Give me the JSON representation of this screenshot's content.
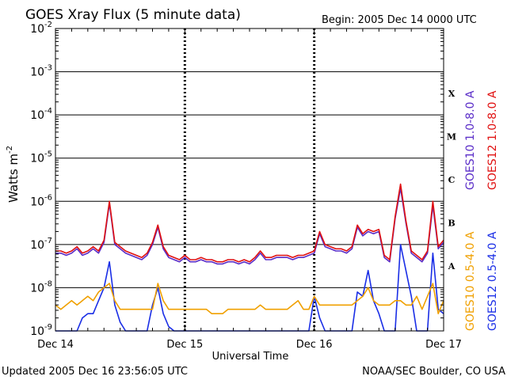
{
  "header": {
    "title": "GOES Xray Flux (5 minute data)",
    "begin": "Begin:  2005 Dec 14 0000 UTC"
  },
  "footer": {
    "updated": "Updated 2005 Dec 16 23:56:05 UTC",
    "credit": "NOAA/SEC Boulder, CO USA"
  },
  "chart_data": {
    "type": "line",
    "xlabel": "Universal Time",
    "ylabel": "Watts m",
    "ylabel_sup": "-2",
    "yscale": "log",
    "ylim": [
      1e-09,
      0.01
    ],
    "xlim": [
      0,
      72
    ],
    "y_ticks": [
      {
        "base": "10",
        "exp": "-9",
        "v": -9
      },
      {
        "base": "10",
        "exp": "-8",
        "v": -8
      },
      {
        "base": "10",
        "exp": "-7",
        "v": -7
      },
      {
        "base": "10",
        "exp": "-6",
        "v": -6
      },
      {
        "base": "10",
        "exp": "-5",
        "v": -5
      },
      {
        "base": "10",
        "exp": "-4",
        "v": -4
      },
      {
        "base": "10",
        "exp": "-3",
        "v": -3
      },
      {
        "base": "10",
        "exp": "-2",
        "v": -2
      }
    ],
    "x_ticks": [
      {
        "label": "Dec 14",
        "x": 0
      },
      {
        "label": "Dec 15",
        "x": 24
      },
      {
        "label": "Dec 16",
        "x": 48
      },
      {
        "label": "Dec 17",
        "x": 72
      }
    ],
    "flare_classes": [
      {
        "label": "X",
        "v": -3.5
      },
      {
        "label": "M",
        "v": -4.5
      },
      {
        "label": "C",
        "v": -5.5
      },
      {
        "label": "B",
        "v": -6.5
      },
      {
        "label": "A",
        "v": -7.5
      }
    ],
    "grid": true,
    "legend_position": "right",
    "series": [
      {
        "name": "GOES12 0.5-4.0 A",
        "color": "#1a2ee6",
        "x": [
          0,
          1,
          2,
          3,
          4,
          5,
          6,
          7,
          8,
          9,
          10,
          11,
          12,
          13,
          14,
          15,
          16,
          17,
          18,
          19,
          20,
          21,
          22,
          23,
          24,
          25,
          26,
          27,
          28,
          29,
          30,
          31,
          32,
          33,
          34,
          35,
          36,
          37,
          38,
          39,
          40,
          41,
          42,
          43,
          44,
          45,
          46,
          47,
          48,
          49,
          50,
          51,
          52,
          53,
          54,
          55,
          56,
          57,
          58,
          59,
          60,
          61,
          62,
          63,
          64,
          65,
          66,
          67,
          68,
          69,
          70,
          71,
          72
        ],
        "logy": [
          -9,
          -9,
          -9,
          -9,
          -9,
          -8.7,
          -8.6,
          -8.6,
          -8.3,
          -8,
          -7.4,
          -8.4,
          -8.8,
          -9,
          -9,
          -9,
          -9,
          -9,
          -8.4,
          -8,
          -8.6,
          -8.9,
          -9,
          -9,
          -9,
          -9,
          -9,
          -9,
          -9,
          -9,
          -9,
          -9,
          -9,
          -9,
          -9,
          -9,
          -9,
          -9,
          -9,
          -9,
          -9,
          -9,
          -9,
          -9,
          -9,
          -9,
          -9,
          -9,
          -8.2,
          -8.7,
          -9,
          -9,
          -9,
          -9,
          -9,
          -9,
          -8.1,
          -8.2,
          -7.6,
          -8.3,
          -8.6,
          -9,
          -9,
          -9.0,
          -7.0,
          -7.6,
          -8.2,
          -9,
          -9,
          -9,
          -7.2,
          -8.5,
          -8.6
        ]
      },
      {
        "name": "GOES10 0.5-4.0 A",
        "color": "#f0a000",
        "x": [
          0,
          1,
          2,
          3,
          4,
          5,
          6,
          7,
          8,
          9,
          10,
          11,
          12,
          13,
          14,
          15,
          16,
          17,
          18,
          19,
          20,
          21,
          22,
          23,
          24,
          25,
          26,
          27,
          28,
          29,
          30,
          31,
          32,
          33,
          34,
          35,
          36,
          37,
          38,
          39,
          40,
          41,
          42,
          43,
          44,
          45,
          46,
          47,
          48,
          49,
          50,
          51,
          52,
          53,
          54,
          55,
          56,
          57,
          58,
          59,
          60,
          61,
          62,
          63,
          64,
          65,
          66,
          67,
          68,
          69,
          70,
          71,
          72
        ],
        "logy": [
          -8.4,
          -8.5,
          -8.4,
          -8.3,
          -8.4,
          -8.3,
          -8.2,
          -8.3,
          -8.1,
          -8.0,
          -7.9,
          -8.3,
          -8.5,
          -8.5,
          -8.5,
          -8.5,
          -8.5,
          -8.5,
          -8.5,
          -7.9,
          -8.3,
          -8.5,
          -8.5,
          -8.5,
          -8.5,
          -8.5,
          -8.5,
          -8.5,
          -8.5,
          -8.6,
          -8.6,
          -8.6,
          -8.5,
          -8.5,
          -8.5,
          -8.5,
          -8.5,
          -8.5,
          -8.4,
          -8.5,
          -8.5,
          -8.5,
          -8.5,
          -8.5,
          -8.4,
          -8.3,
          -8.5,
          -8.5,
          -8.2,
          -8.4,
          -8.4,
          -8.4,
          -8.4,
          -8.4,
          -8.4,
          -8.4,
          -8.3,
          -8.2,
          -8.0,
          -8.3,
          -8.4,
          -8.4,
          -8.4,
          -8.3,
          -8.3,
          -8.4,
          -8.4,
          -8.2,
          -8.5,
          -8.2,
          -7.9,
          -8.6,
          -8.3
        ]
      },
      {
        "name": "GOES10 1.0-8.0 A",
        "color": "#5a2dc8",
        "x": [
          0,
          1,
          2,
          3,
          4,
          5,
          6,
          7,
          8,
          9,
          10,
          11,
          12,
          13,
          14,
          15,
          16,
          17,
          18,
          19,
          20,
          21,
          22,
          23,
          24,
          25,
          26,
          27,
          28,
          29,
          30,
          31,
          32,
          33,
          34,
          35,
          36,
          37,
          38,
          39,
          40,
          41,
          42,
          43,
          44,
          45,
          46,
          47,
          48,
          49,
          50,
          51,
          52,
          53,
          54,
          55,
          56,
          57,
          58,
          59,
          60,
          61,
          62,
          63,
          64,
          65,
          66,
          67,
          68,
          69,
          70,
          71,
          72
        ],
        "logy": [
          -7.2,
          -7.2,
          -7.25,
          -7.2,
          -7.1,
          -7.25,
          -7.2,
          -7.1,
          -7.2,
          -6.95,
          -6.05,
          -7.0,
          -7.1,
          -7.2,
          -7.25,
          -7.3,
          -7.35,
          -7.25,
          -7.0,
          -6.6,
          -7.1,
          -7.3,
          -7.35,
          -7.4,
          -7.3,
          -7.4,
          -7.4,
          -7.35,
          -7.4,
          -7.4,
          -7.45,
          -7.45,
          -7.4,
          -7.4,
          -7.45,
          -7.4,
          -7.45,
          -7.35,
          -7.2,
          -7.35,
          -7.35,
          -7.3,
          -7.3,
          -7.3,
          -7.35,
          -7.3,
          -7.3,
          -7.25,
          -7.2,
          -6.75,
          -7.05,
          -7.1,
          -7.15,
          -7.15,
          -7.2,
          -7.1,
          -6.6,
          -6.8,
          -6.7,
          -6.75,
          -6.7,
          -7.3,
          -7.4,
          -6.4,
          -5.7,
          -6.5,
          -7.2,
          -7.3,
          -7.4,
          -7.2,
          -6.1,
          -7.1,
          -6.95
        ]
      },
      {
        "name": "GOES12 1.0-8.0 A",
        "color": "#e01010",
        "x": [
          0,
          1,
          2,
          3,
          4,
          5,
          6,
          7,
          8,
          9,
          10,
          11,
          12,
          13,
          14,
          15,
          16,
          17,
          18,
          19,
          20,
          21,
          22,
          23,
          24,
          25,
          26,
          27,
          28,
          29,
          30,
          31,
          32,
          33,
          34,
          35,
          36,
          37,
          38,
          39,
          40,
          41,
          42,
          43,
          44,
          45,
          46,
          47,
          48,
          49,
          50,
          51,
          52,
          53,
          54,
          55,
          56,
          57,
          58,
          59,
          60,
          61,
          62,
          63,
          64,
          65,
          66,
          67,
          68,
          69,
          70,
          71,
          72
        ],
        "logy": [
          -7.15,
          -7.15,
          -7.2,
          -7.15,
          -7.05,
          -7.2,
          -7.15,
          -7.05,
          -7.15,
          -6.9,
          -6.0,
          -6.95,
          -7.05,
          -7.15,
          -7.2,
          -7.25,
          -7.3,
          -7.2,
          -6.95,
          -6.55,
          -7.05,
          -7.25,
          -7.3,
          -7.35,
          -7.25,
          -7.35,
          -7.35,
          -7.3,
          -7.35,
          -7.35,
          -7.4,
          -7.4,
          -7.35,
          -7.35,
          -7.4,
          -7.35,
          -7.4,
          -7.3,
          -7.15,
          -7.3,
          -7.3,
          -7.25,
          -7.25,
          -7.25,
          -7.3,
          -7.25,
          -7.25,
          -7.2,
          -7.15,
          -6.7,
          -7.0,
          -7.05,
          -7.1,
          -7.1,
          -7.15,
          -7.05,
          -6.55,
          -6.75,
          -6.65,
          -6.7,
          -6.65,
          -7.25,
          -7.35,
          -6.35,
          -5.6,
          -6.45,
          -7.15,
          -7.25,
          -7.35,
          -7.15,
          -6.0,
          -7.05,
          -6.9
        ]
      }
    ]
  }
}
